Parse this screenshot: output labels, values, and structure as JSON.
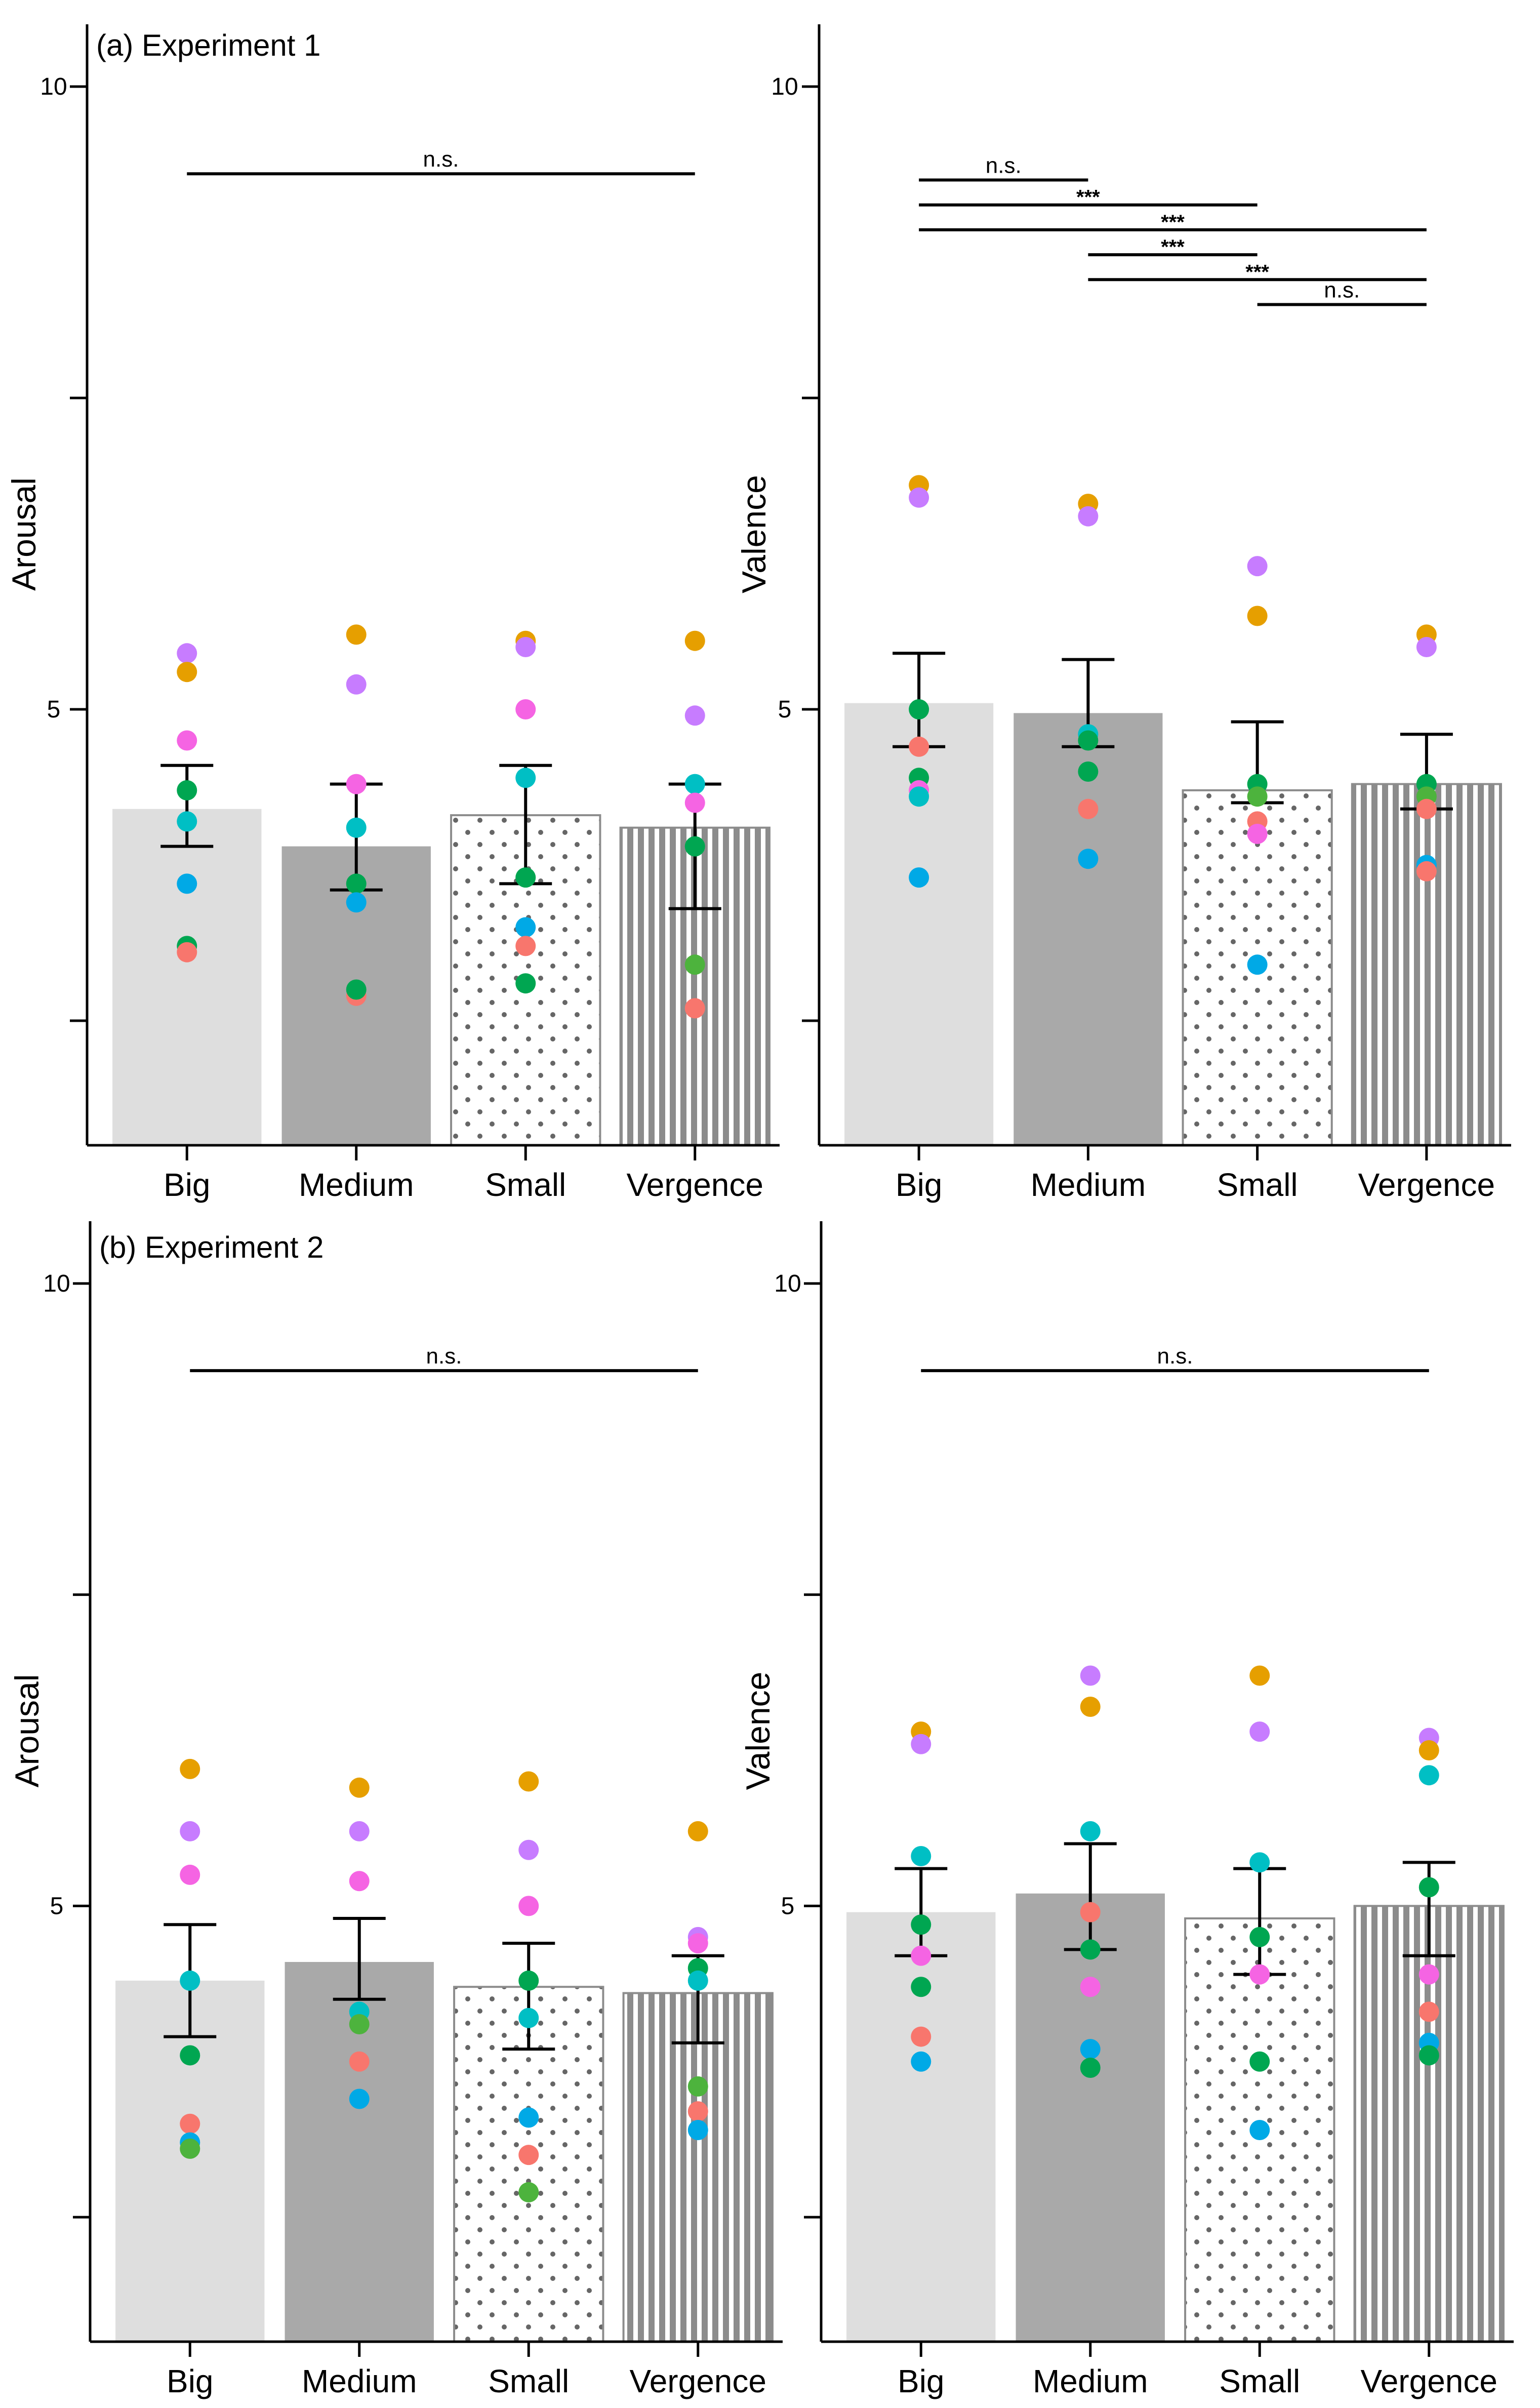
{
  "colors": {
    "big": "#dedede",
    "medium": "#a9a9a9",
    "patternBg": "#ffffff",
    "patternStroke": "#8c8c8c",
    "axis": "#000000",
    "participants": [
      "#f8766d",
      "#e69f00",
      "#00a651",
      "#00bfc4",
      "#00a9e6",
      "#c77cff",
      "#f564e3",
      "#4db33d"
    ]
  },
  "chart_data": [
    {
      "type": "bar",
      "title": "(a) Experiment 1",
      "ylabel": "Arousal",
      "xlabel": "",
      "ylim": [
        1.5,
        10.5
      ],
      "yticks": [
        10,
        5
      ],
      "yticklabels": [
        "10",
        "5"
      ],
      "yticks_unlabeled": [
        7.5,
        2.5
      ],
      "categories": [
        "Big",
        "Medium",
        "Small",
        "Vergence"
      ],
      "values": [
        4.2,
        3.9,
        4.15,
        4.05
      ],
      "error": [
        [
          3.9,
          4.55
        ],
        [
          3.55,
          4.4
        ],
        [
          3.6,
          4.55
        ],
        [
          3.4,
          4.4
        ]
      ],
      "points": [
        [
          [
            5.45,
            "#c77cff"
          ],
          [
            5.3,
            "#e69f00"
          ],
          [
            4.75,
            "#f564e3"
          ],
          [
            4.35,
            "#00a651"
          ],
          [
            4.1,
            "#00bfc4"
          ],
          [
            3.6,
            "#00a9e6"
          ],
          [
            3.1,
            "#00a651"
          ],
          [
            3.05,
            "#f8766d"
          ]
        ],
        [
          [
            5.6,
            "#e69f00"
          ],
          [
            5.2,
            "#c77cff"
          ],
          [
            4.4,
            "#f564e3"
          ],
          [
            4.05,
            "#00bfc4"
          ],
          [
            3.6,
            "#00a651"
          ],
          [
            3.45,
            "#00a9e6"
          ],
          [
            2.7,
            "#f8766d"
          ],
          [
            2.75,
            "#00a651"
          ]
        ],
        [
          [
            5.55,
            "#e69f00"
          ],
          [
            5.5,
            "#c77cff"
          ],
          [
            5.0,
            "#f564e3"
          ],
          [
            4.45,
            "#00bfc4"
          ],
          [
            3.65,
            "#00a651"
          ],
          [
            3.25,
            "#00a9e6"
          ],
          [
            3.1,
            "#f8766d"
          ],
          [
            2.8,
            "#00a651"
          ]
        ],
        [
          [
            5.55,
            "#e69f00"
          ],
          [
            4.95,
            "#c77cff"
          ],
          [
            4.4,
            "#00bfc4"
          ],
          [
            4.25,
            "#f564e3"
          ],
          [
            3.9,
            "#00a651"
          ],
          [
            2.95,
            "#4db33d"
          ],
          [
            2.6,
            "#f8766d"
          ]
        ]
      ],
      "significance": [
        {
          "from": "Big",
          "to": "Vergence",
          "y": 9.3,
          "label": "n.s."
        }
      ]
    },
    {
      "type": "bar",
      "title": "",
      "ylabel": "Valence",
      "xlabel": "",
      "ylim": [
        1.5,
        10.5
      ],
      "yticks": [
        10,
        5
      ],
      "yticklabels": [
        "10",
        "5"
      ],
      "yticks_unlabeled": [
        7.5,
        2.5
      ],
      "categories": [
        "Big",
        "Medium",
        "Small",
        "Vergence"
      ],
      "values": [
        5.05,
        4.97,
        4.35,
        4.4
      ],
      "error": [
        [
          4.7,
          5.45
        ],
        [
          4.7,
          5.4
        ],
        [
          4.25,
          4.9
        ],
        [
          4.2,
          4.8
        ]
      ],
      "points": [
        [
          [
            6.8,
            "#e69f00"
          ],
          [
            6.7,
            "#c77cff"
          ],
          [
            5.0,
            "#00a651"
          ],
          [
            4.7,
            "#f8766d"
          ],
          [
            4.45,
            "#00a651"
          ],
          [
            4.35,
            "#f564e3"
          ],
          [
            4.3,
            "#00bfc4"
          ],
          [
            3.65,
            "#00a9e6"
          ]
        ],
        [
          [
            6.65,
            "#e69f00"
          ],
          [
            6.55,
            "#c77cff"
          ],
          [
            4.8,
            "#00bfc4"
          ],
          [
            4.75,
            "#00a651"
          ],
          [
            4.5,
            "#00a651"
          ],
          [
            4.2,
            "#f8766d"
          ],
          [
            3.8,
            "#00a9e6"
          ]
        ],
        [
          [
            6.15,
            "#c77cff"
          ],
          [
            5.75,
            "#e69f00"
          ],
          [
            4.4,
            "#00a651"
          ],
          [
            4.3,
            "#4db33d"
          ],
          [
            4.1,
            "#f8766d"
          ],
          [
            4.0,
            "#f564e3"
          ],
          [
            2.95,
            "#00a9e6"
          ]
        ],
        [
          [
            5.6,
            "#e69f00"
          ],
          [
            5.5,
            "#c77cff"
          ],
          [
            4.4,
            "#00a651"
          ],
          [
            4.3,
            "#4db33d"
          ],
          [
            4.2,
            "#f8766d"
          ],
          [
            3.75,
            "#00a9e6"
          ],
          [
            3.7,
            "#f8766d"
          ]
        ]
      ],
      "significance": [
        {
          "from": "Big",
          "to": "Medium",
          "y": 9.25,
          "label": "n.s."
        },
        {
          "from": "Big",
          "to": "Small",
          "y": 9.05,
          "label": "***"
        },
        {
          "from": "Big",
          "to": "Vergence",
          "y": 8.85,
          "label": "***"
        },
        {
          "from": "Medium",
          "to": "Small",
          "y": 8.65,
          "label": "***"
        },
        {
          "from": "Medium",
          "to": "Vergence",
          "y": 8.45,
          "label": "***"
        },
        {
          "from": "Small",
          "to": "Vergence",
          "y": 8.25,
          "label": "n.s."
        }
      ]
    },
    {
      "type": "bar",
      "title": "(b) Experiment 2",
      "ylabel": "Arousal",
      "xlabel": "",
      "ylim": [
        1.5,
        10.5
      ],
      "yticks": [
        10,
        5
      ],
      "yticklabels": [
        "10",
        "5"
      ],
      "yticks_unlabeled": [
        7.5,
        2.5
      ],
      "categories": [
        "Big",
        "Medium",
        "Small",
        "Vergence"
      ],
      "values": [
        4.4,
        4.55,
        4.35,
        4.3
      ],
      "error": [
        [
          3.95,
          4.85
        ],
        [
          4.25,
          4.9
        ],
        [
          3.85,
          4.7
        ],
        [
          3.9,
          4.6
        ]
      ],
      "points": [
        [
          [
            6.1,
            "#e69f00"
          ],
          [
            5.6,
            "#c77cff"
          ],
          [
            5.25,
            "#f564e3"
          ],
          [
            4.4,
            "#00bfc4"
          ],
          [
            3.8,
            "#00a651"
          ],
          [
            3.25,
            "#f8766d"
          ],
          [
            3.1,
            "#00a9e6"
          ],
          [
            3.05,
            "#4db33d"
          ]
        ],
        [
          [
            5.95,
            "#e69f00"
          ],
          [
            5.6,
            "#c77cff"
          ],
          [
            5.2,
            "#f564e3"
          ],
          [
            4.15,
            "#00bfc4"
          ],
          [
            4.05,
            "#4db33d"
          ],
          [
            3.75,
            "#f8766d"
          ],
          [
            3.45,
            "#00a9e6"
          ]
        ],
        [
          [
            6.0,
            "#e69f00"
          ],
          [
            5.45,
            "#c77cff"
          ],
          [
            5.0,
            "#f564e3"
          ],
          [
            4.4,
            "#00a651"
          ],
          [
            4.1,
            "#00bfc4"
          ],
          [
            3.3,
            "#00a9e6"
          ],
          [
            3.0,
            "#f8766d"
          ],
          [
            2.7,
            "#4db33d"
          ]
        ],
        [
          [
            5.6,
            "#e69f00"
          ],
          [
            4.75,
            "#c77cff"
          ],
          [
            4.7,
            "#f564e3"
          ],
          [
            4.5,
            "#00a651"
          ],
          [
            4.4,
            "#00bfc4"
          ],
          [
            3.55,
            "#4db33d"
          ],
          [
            3.35,
            "#f8766d"
          ],
          [
            3.2,
            "#00a9e6"
          ]
        ]
      ],
      "significance": [
        {
          "from": "Big",
          "to": "Vergence",
          "y": 9.3,
          "label": "n.s."
        }
      ]
    },
    {
      "type": "bar",
      "title": "",
      "ylabel": "Valence",
      "xlabel": "",
      "ylim": [
        1.5,
        10.5
      ],
      "yticks": [
        10,
        5
      ],
      "yticklabels": [
        "10",
        "5"
      ],
      "yticks_unlabeled": [
        7.5,
        2.5
      ],
      "categories": [
        "Big",
        "Medium",
        "Small",
        "Vergence"
      ],
      "values": [
        4.95,
        5.1,
        4.9,
        5.0
      ],
      "error": [
        [
          4.6,
          5.3
        ],
        [
          4.65,
          5.5
        ],
        [
          4.45,
          5.3
        ],
        [
          4.6,
          5.35
        ]
      ],
      "points": [
        [
          [
            6.4,
            "#e69f00"
          ],
          [
            6.3,
            "#c77cff"
          ],
          [
            5.4,
            "#00bfc4"
          ],
          [
            4.85,
            "#00a651"
          ],
          [
            4.6,
            "#f564e3"
          ],
          [
            4.35,
            "#00a651"
          ],
          [
            3.95,
            "#f8766d"
          ],
          [
            3.75,
            "#00a9e6"
          ]
        ],
        [
          [
            6.85,
            "#c77cff"
          ],
          [
            6.6,
            "#e69f00"
          ],
          [
            5.6,
            "#00bfc4"
          ],
          [
            4.95,
            "#f8766d"
          ],
          [
            4.65,
            "#00a651"
          ],
          [
            4.35,
            "#f564e3"
          ],
          [
            3.85,
            "#00a9e6"
          ],
          [
            3.7,
            "#00a651"
          ]
        ],
        [
          [
            6.85,
            "#e69f00"
          ],
          [
            6.4,
            "#c77cff"
          ],
          [
            5.35,
            "#00bfc4"
          ],
          [
            4.75,
            "#00a651"
          ],
          [
            4.45,
            "#f564e3"
          ],
          [
            3.75,
            "#00a651"
          ],
          [
            3.2,
            "#00a9e6"
          ]
        ],
        [
          [
            6.35,
            "#c77cff"
          ],
          [
            6.25,
            "#e69f00"
          ],
          [
            6.05,
            "#00bfc4"
          ],
          [
            5.15,
            "#00a651"
          ],
          [
            4.45,
            "#f564e3"
          ],
          [
            4.15,
            "#f8766d"
          ],
          [
            3.9,
            "#00a9e6"
          ],
          [
            3.8,
            "#00a651"
          ]
        ]
      ],
      "significance": [
        {
          "from": "Big",
          "to": "Vergence",
          "y": 9.3,
          "label": "n.s."
        }
      ]
    }
  ]
}
